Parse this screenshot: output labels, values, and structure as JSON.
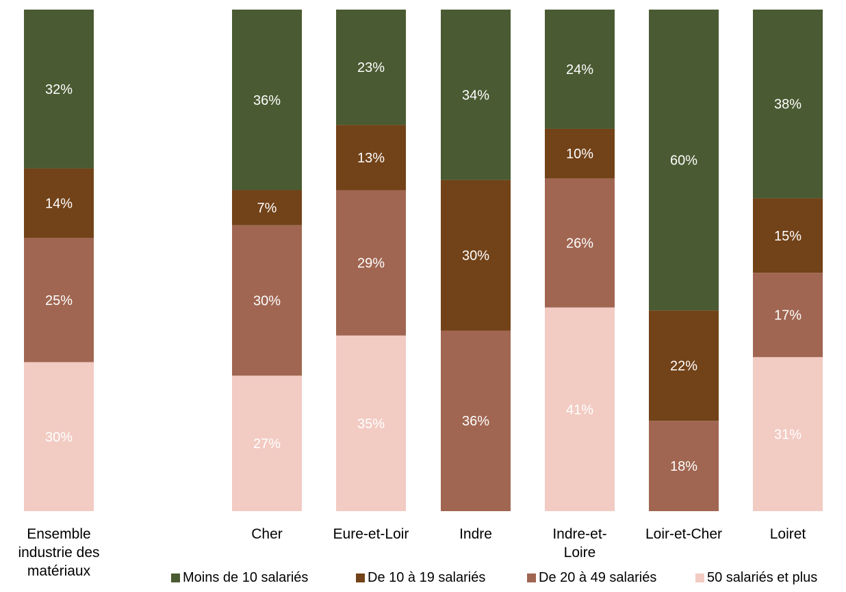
{
  "chart_data": {
    "type": "bar",
    "stacked": true,
    "percent": true,
    "categories": [
      "Ensemble industrie des matériaux",
      "Cher",
      "Eure-et-Loir",
      "Indre",
      "Indre-et-Loire",
      "Loir-et-Cher",
      "Loiret"
    ],
    "category_label_lines": [
      [
        "Ensemble",
        "industrie des",
        "matériaux"
      ],
      [
        "Cher"
      ],
      [
        "Eure-et-Loir"
      ],
      [
        "Indre"
      ],
      [
        "Indre-et-",
        "Loire"
      ],
      [
        "Loir-et-Cher"
      ],
      [
        "Loiret"
      ]
    ],
    "series": [
      {
        "name": "Moins de 10 salariés",
        "color": "#4a5a32",
        "label_color": "#ffffff",
        "values": [
          32,
          36,
          23,
          34,
          24,
          60,
          38
        ],
        "labels": [
          "32%",
          "36%",
          "23%",
          "34%",
          "24%",
          "60%",
          "38%"
        ]
      },
      {
        "name": "De 10 à 19 salariés",
        "color": "#724218",
        "label_color": "#ffffff",
        "values": [
          14,
          7,
          13,
          30,
          10,
          22,
          15
        ],
        "labels": [
          "14%",
          "7%",
          "13%",
          "30%",
          "10%",
          "22%",
          "15%"
        ]
      },
      {
        "name": "De 20 à 49 salariés",
        "color": "#a06651",
        "label_color": "#ffffff",
        "values": [
          25,
          30,
          29,
          36,
          26,
          18,
          17
        ],
        "labels": [
          "25%",
          "30%",
          "29%",
          "36%",
          "26%",
          "18%",
          "17%"
        ]
      },
      {
        "name": "50 salariés et plus",
        "color": "#f2cbc3",
        "label_color": "#ffffff",
        "values": [
          30,
          27,
          35,
          0,
          41,
          0,
          31
        ],
        "labels": [
          "30%",
          "27%",
          "35%",
          "",
          "41%",
          "",
          "31%"
        ]
      }
    ],
    "ylim": [
      0,
      100
    ],
    "grid": false,
    "legend_position": "bottom"
  }
}
